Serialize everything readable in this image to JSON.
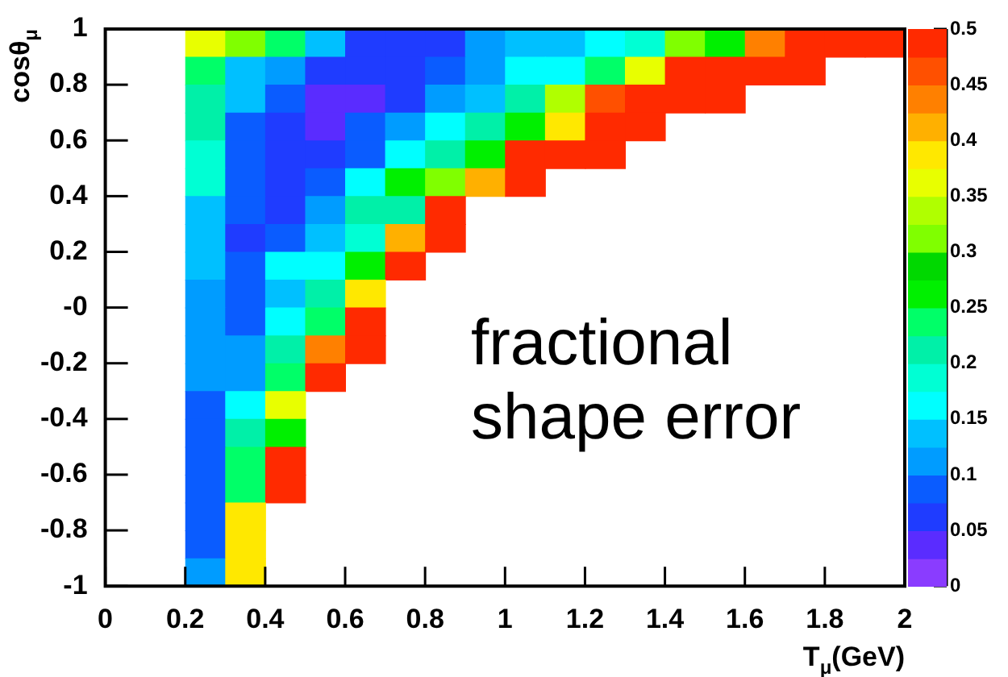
{
  "chart_data": {
    "type": "heatmap",
    "xlabel": "T$_{μ}$(GeV)",
    "ylabel": "cosθ$_{μ}$",
    "annotations": [
      "fractional shape error"
    ],
    "xlim": [
      0,
      2
    ],
    "xticks": [
      0,
      0.2,
      0.4,
      0.6,
      0.8,
      1,
      1.2,
      1.4,
      1.6,
      1.8,
      2
    ],
    "ylim": [
      -1,
      1
    ],
    "yticks": [
      -1,
      -0.8,
      -0.6,
      -0.4,
      -0.2,
      {
        "value": 0,
        "label": "-0"
      },
      0.2,
      0.4,
      0.6,
      0.8,
      1
    ],
    "clim": [
      0,
      0.5
    ],
    "cticks": [
      0,
      0.05,
      0.1,
      0.15,
      0.2,
      0.25,
      0.3,
      0.35,
      0.4,
      0.45,
      0.5
    ],
    "cells": [
      [
        null,
        null,
        0.36,
        0.31,
        0.24,
        0.14,
        0.07,
        0.07,
        0.07,
        0.11,
        0.14,
        0.14,
        0.16,
        0.19,
        0.31,
        0.26,
        0.44,
        0.49,
        0.49,
        0.49
      ],
      [
        null,
        null,
        0.24,
        0.14,
        0.11,
        0.06,
        0.06,
        0.06,
        0.09,
        0.11,
        0.16,
        0.16,
        0.24,
        0.37,
        0.49,
        0.49,
        0.49,
        0.49,
        null,
        null
      ],
      [
        null,
        null,
        0.21,
        0.14,
        0.09,
        0.04,
        0.04,
        0.06,
        0.11,
        0.14,
        0.21,
        0.33,
        0.46,
        0.49,
        0.49,
        0.49,
        null,
        null,
        null,
        null
      ],
      [
        null,
        null,
        0.21,
        0.09,
        0.06,
        0.04,
        0.08,
        0.11,
        0.16,
        0.21,
        0.26,
        0.39,
        0.49,
        0.49,
        null,
        null,
        null,
        null,
        null,
        null
      ],
      [
        null,
        null,
        0.18,
        0.09,
        0.06,
        0.06,
        0.08,
        0.16,
        0.21,
        0.26,
        0.49,
        0.49,
        0.49,
        null,
        null,
        null,
        null,
        null,
        null,
        null
      ],
      [
        null,
        null,
        0.18,
        0.09,
        0.06,
        0.08,
        0.16,
        0.26,
        0.31,
        0.41,
        0.49,
        null,
        null,
        null,
        null,
        null,
        null,
        null,
        null,
        null
      ],
      [
        null,
        null,
        0.14,
        0.09,
        0.06,
        0.11,
        0.21,
        0.21,
        0.49,
        null,
        null,
        null,
        null,
        null,
        null,
        null,
        null,
        null,
        null,
        null
      ],
      [
        null,
        null,
        0.14,
        0.06,
        0.08,
        0.14,
        0.19,
        0.41,
        0.49,
        null,
        null,
        null,
        null,
        null,
        null,
        null,
        null,
        null,
        null,
        null
      ],
      [
        null,
        null,
        0.14,
        0.08,
        0.16,
        0.16,
        0.26,
        0.49,
        null,
        null,
        null,
        null,
        null,
        null,
        null,
        null,
        null,
        null,
        null,
        null
      ],
      [
        null,
        null,
        0.11,
        0.08,
        0.14,
        0.21,
        0.39,
        null,
        null,
        null,
        null,
        null,
        null,
        null,
        null,
        null,
        null,
        null,
        null,
        null
      ],
      [
        null,
        null,
        0.11,
        0.08,
        0.16,
        0.24,
        0.49,
        null,
        null,
        null,
        null,
        null,
        null,
        null,
        null,
        null,
        null,
        null,
        null,
        null
      ],
      [
        null,
        null,
        0.11,
        0.11,
        0.21,
        0.44,
        0.49,
        null,
        null,
        null,
        null,
        null,
        null,
        null,
        null,
        null,
        null,
        null,
        null,
        null
      ],
      [
        null,
        null,
        0.11,
        0.11,
        0.24,
        0.49,
        null,
        null,
        null,
        null,
        null,
        null,
        null,
        null,
        null,
        null,
        null,
        null,
        null,
        null
      ],
      [
        null,
        null,
        0.08,
        0.16,
        0.36,
        null,
        null,
        null,
        null,
        null,
        null,
        null,
        null,
        null,
        null,
        null,
        null,
        null,
        null,
        null
      ],
      [
        null,
        null,
        0.08,
        0.21,
        0.26,
        null,
        null,
        null,
        null,
        null,
        null,
        null,
        null,
        null,
        null,
        null,
        null,
        null,
        null,
        null
      ],
      [
        null,
        null,
        0.08,
        0.24,
        0.49,
        null,
        null,
        null,
        null,
        null,
        null,
        null,
        null,
        null,
        null,
        null,
        null,
        null,
        null,
        null
      ],
      [
        null,
        null,
        0.08,
        0.24,
        0.49,
        null,
        null,
        null,
        null,
        null,
        null,
        null,
        null,
        null,
        null,
        null,
        null,
        null,
        null,
        null
      ],
      [
        null,
        null,
        0.08,
        0.39,
        null,
        null,
        null,
        null,
        null,
        null,
        null,
        null,
        null,
        null,
        null,
        null,
        null,
        null,
        null,
        null
      ],
      [
        null,
        null,
        0.08,
        0.39,
        null,
        null,
        null,
        null,
        null,
        null,
        null,
        null,
        null,
        null,
        null,
        null,
        null,
        null,
        null,
        null
      ],
      [
        null,
        null,
        0.11,
        0.39,
        null,
        null,
        null,
        null,
        null,
        null,
        null,
        null,
        null,
        null,
        null,
        null,
        null,
        null,
        null,
        null
      ]
    ]
  }
}
